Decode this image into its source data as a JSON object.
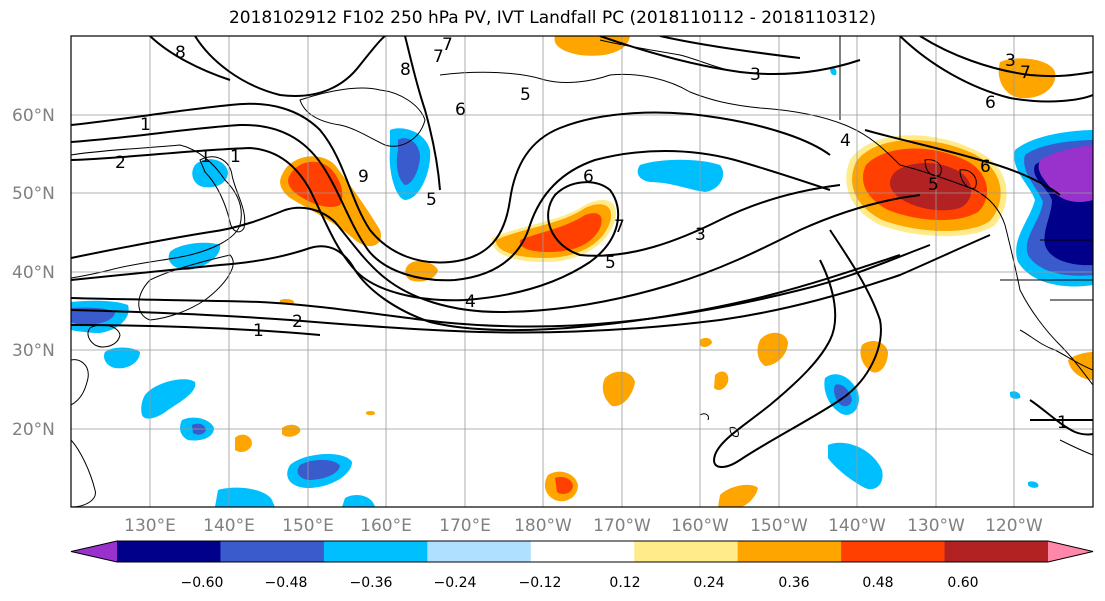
{
  "title": "2018102912 F102 250 hPa PV, IVT Landfall PC (2018110112 - 2018110312)",
  "latitude_labels": [
    "60°N",
    "50°N",
    "40°N",
    "30°N",
    "20°N"
  ],
  "longitude_labels": [
    "130°E",
    "140°E",
    "150°E",
    "160°E",
    "170°E",
    "180°W",
    "170°W",
    "160°W",
    "150°W",
    "140°W",
    "130°W",
    "120°W"
  ],
  "colorbar": {
    "tick_labels": [
      "−0.60",
      "−0.48",
      "−0.36",
      "−0.24",
      "−0.12",
      "0.12",
      "0.24",
      "0.36",
      "0.48",
      "0.60"
    ],
    "colors": [
      "#9932cc",
      "#00008b",
      "#3a5bcc",
      "#00bfff",
      "#b0e0ff",
      "#ffffff",
      "#ffeb8a",
      "#ffa500",
      "#ff4000",
      "#b22222",
      "#ff88aa"
    ]
  },
  "contour_labels": [
    "8",
    "7",
    "8",
    "7",
    "6",
    "5",
    "3",
    "1",
    "1",
    "2",
    "1",
    "9",
    "5",
    "6",
    "7",
    "5",
    "3",
    "4",
    "2",
    "1",
    "7",
    "4",
    "5",
    "6",
    "6",
    "3",
    "1"
  ]
}
